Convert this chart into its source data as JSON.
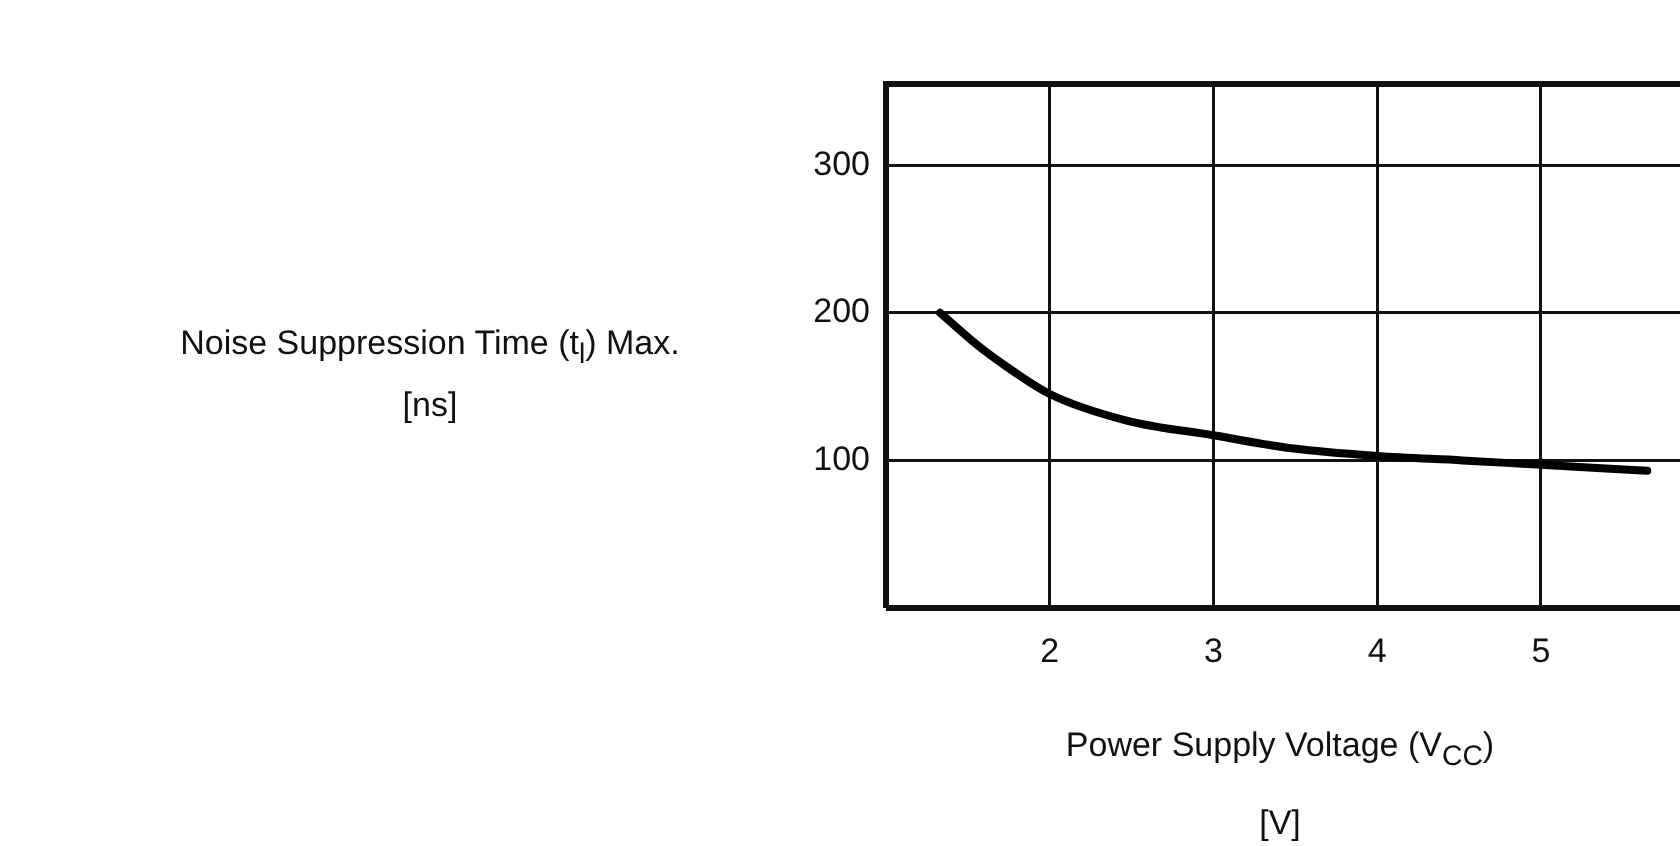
{
  "chart_data": {
    "type": "line",
    "xlabel": "Power Supply Voltage (V$_{CC}$)\n[V]",
    "ylabel": "Noise Suppression Time (t$_{l}$) Max.\n[ns]",
    "xlim": [
      1,
      5.85
    ],
    "xticks": [
      2,
      3,
      4,
      5
    ],
    "ylim": [
      0,
      355
    ],
    "yticks": [
      100,
      200,
      300
    ],
    "grid": true,
    "legend": false,
    "marker": "none",
    "line_style": "solid",
    "series": [
      {
        "color": "#000000",
        "x": [
          1.33,
          1.57,
          1.73,
          2,
          2.47,
          3,
          3.49,
          4,
          4.52,
          5,
          5.65
        ],
        "values": [
          200,
          177,
          164,
          145,
          127,
          117,
          108,
          103,
          100,
          97,
          93
        ]
      }
    ]
  }
}
